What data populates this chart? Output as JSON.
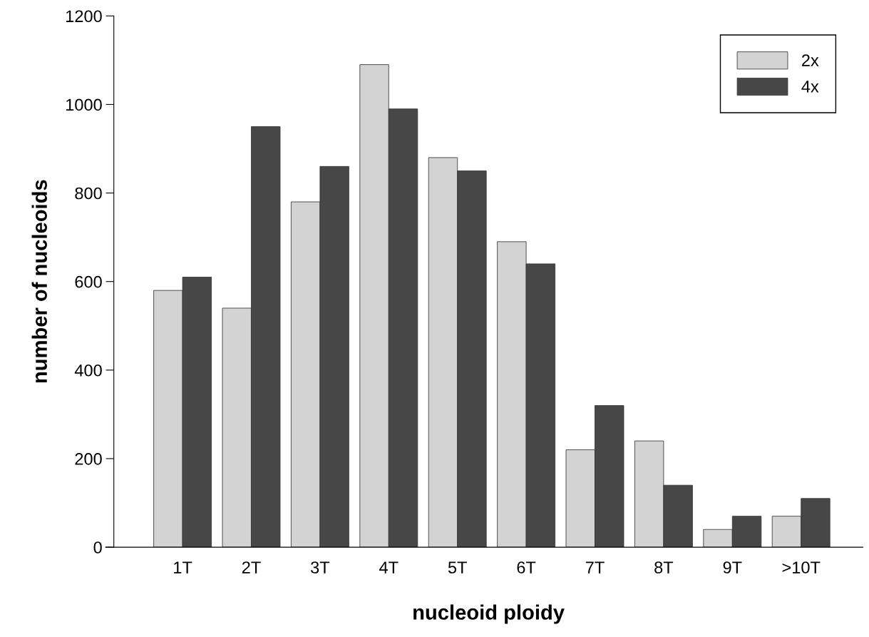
{
  "chart_data": {
    "type": "bar",
    "xlabel": "nucleoid ploidy",
    "ylabel": "number of nucleoids",
    "categories": [
      "1T",
      "2T",
      "3T",
      "4T",
      "5T",
      "6T",
      "7T",
      "8T",
      "9T",
      ">10T"
    ],
    "series": [
      {
        "name": "2x",
        "color": "#d3d3d3",
        "values": [
          580,
          540,
          780,
          1090,
          880,
          690,
          220,
          240,
          40,
          70
        ]
      },
      {
        "name": "4x",
        "color": "#474747",
        "values": [
          610,
          950,
          860,
          990,
          850,
          640,
          320,
          140,
          70,
          110
        ]
      }
    ],
    "ylim": [
      0,
      1200
    ],
    "yticks": [
      0,
      200,
      400,
      600,
      800,
      1000,
      1200
    ],
    "grid": false,
    "legend": "top right"
  }
}
